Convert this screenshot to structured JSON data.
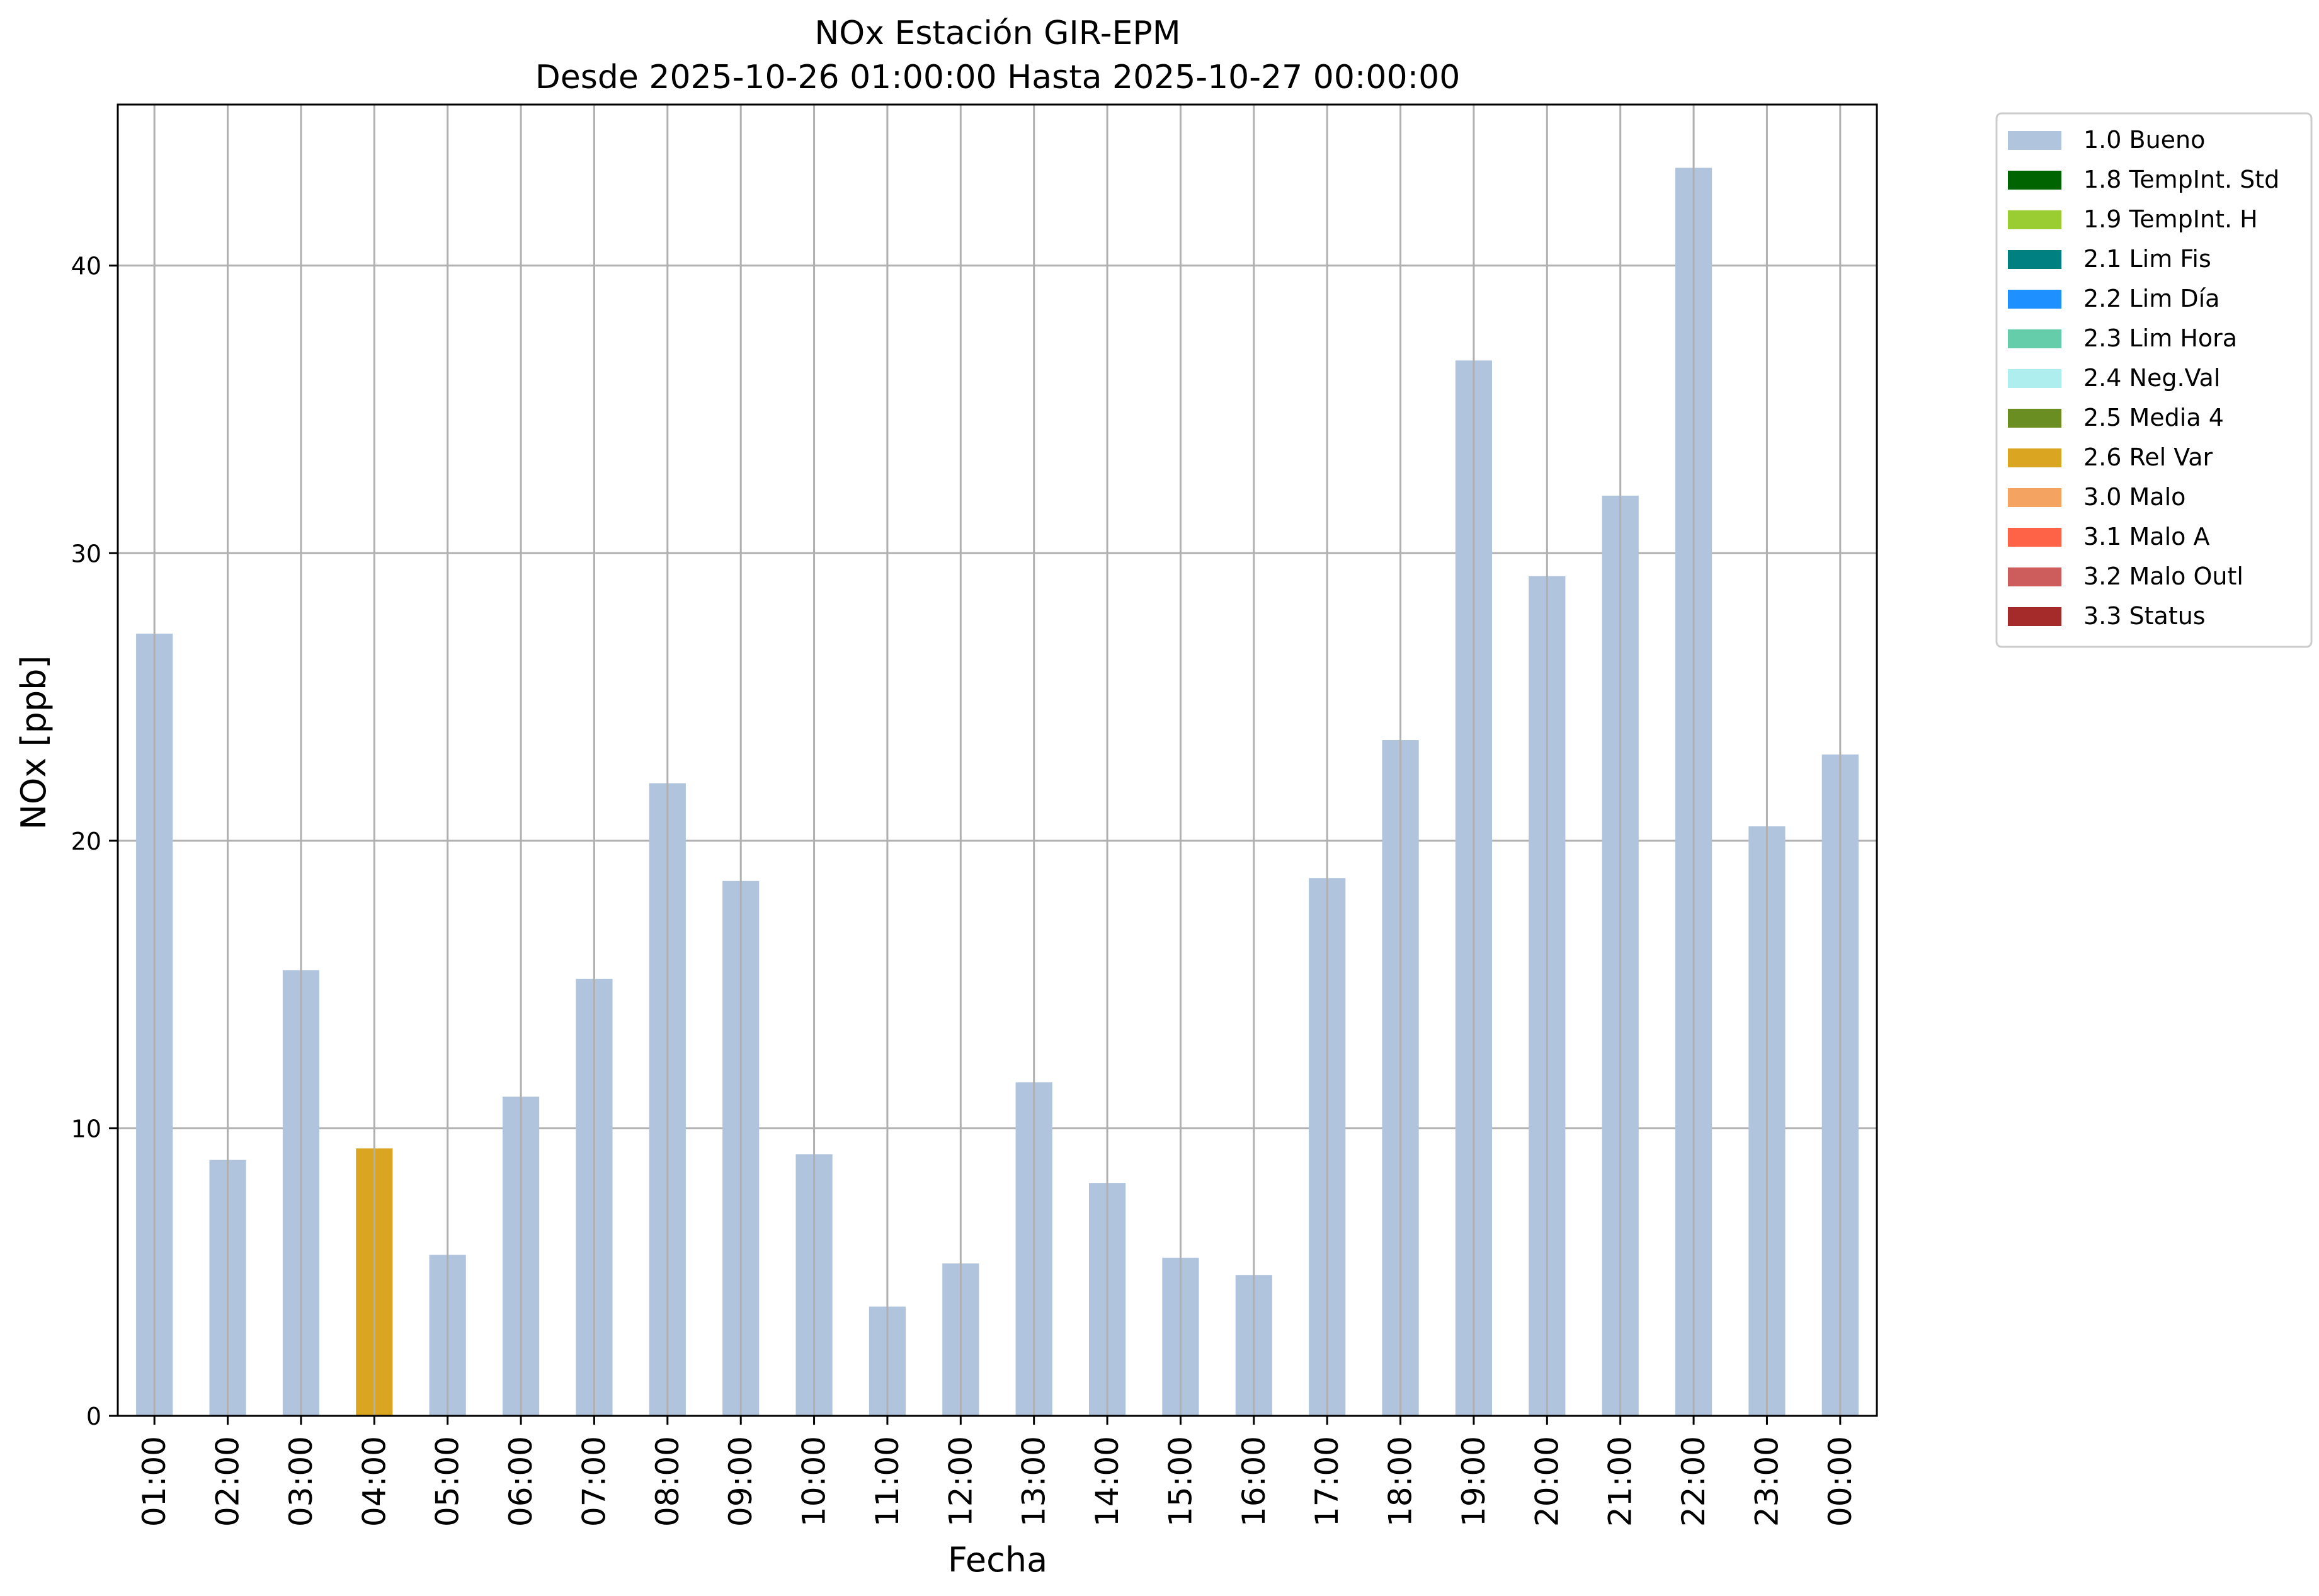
{
  "chart_data": {
    "type": "bar",
    "title": "NOx Estación GIR-EPM",
    "subtitle": "Desde 2025-10-26 01:00:00 Hasta 2025-10-27 00:00:00",
    "xlabel": "Fecha",
    "ylabel": "NOx [ppb]",
    "ylim": [
      0,
      45.6
    ],
    "yticks": [
      0,
      10,
      20,
      30,
      40
    ],
    "grid": true,
    "legend_position": "outside-right-top",
    "categories": [
      "01:00",
      "02:00",
      "03:00",
      "04:00",
      "05:00",
      "06:00",
      "07:00",
      "08:00",
      "09:00",
      "10:00",
      "11:00",
      "12:00",
      "13:00",
      "14:00",
      "15:00",
      "16:00",
      "17:00",
      "18:00",
      "19:00",
      "20:00",
      "21:00",
      "22:00",
      "23:00",
      "00:00"
    ],
    "values": [
      27.2,
      8.9,
      15.5,
      9.3,
      5.6,
      11.1,
      15.2,
      22.0,
      18.6,
      9.1,
      3.8,
      5.3,
      11.6,
      8.1,
      5.5,
      4.9,
      18.7,
      23.5,
      36.7,
      29.2,
      32.0,
      43.4,
      20.5,
      23.0
    ],
    "flags": [
      "1.0 Bueno",
      "1.0 Bueno",
      "1.0 Bueno",
      "2.6 Rel Var",
      "1.0 Bueno",
      "1.0 Bueno",
      "1.0 Bueno",
      "1.0 Bueno",
      "1.0 Bueno",
      "1.0 Bueno",
      "1.0 Bueno",
      "1.0 Bueno",
      "1.0 Bueno",
      "1.0 Bueno",
      "1.0 Bueno",
      "1.0 Bueno",
      "1.0 Bueno",
      "1.0 Bueno",
      "1.0 Bueno",
      "1.0 Bueno",
      "1.0 Bueno",
      "1.0 Bueno",
      "1.0 Bueno",
      "1.0 Bueno"
    ],
    "legend": [
      {
        "label": "1.0 Bueno",
        "color": "#b0c4de"
      },
      {
        "label": "1.8 TempInt. Std",
        "color": "#006400"
      },
      {
        "label": "1.9 TempInt. H",
        "color": "#9acd32"
      },
      {
        "label": "2.1 Lim Fis",
        "color": "#008080"
      },
      {
        "label": "2.2 Lim Día",
        "color": "#1e90ff"
      },
      {
        "label": "2.3 Lim Hora",
        "color": "#66cdaa"
      },
      {
        "label": "2.4 Neg.Val",
        "color": "#afeeee"
      },
      {
        "label": "2.5 Media 4",
        "color": "#6b8e23"
      },
      {
        "label": "2.6 Rel Var",
        "color": "#daa520"
      },
      {
        "label": "3.0 Malo",
        "color": "#f4a460"
      },
      {
        "label": "3.1 Malo A",
        "color": "#ff6347"
      },
      {
        "label": "3.2 Malo Outl",
        "color": "#cd5c5c"
      },
      {
        "label": "3.3 Status",
        "color": "#a52a2a"
      }
    ]
  }
}
